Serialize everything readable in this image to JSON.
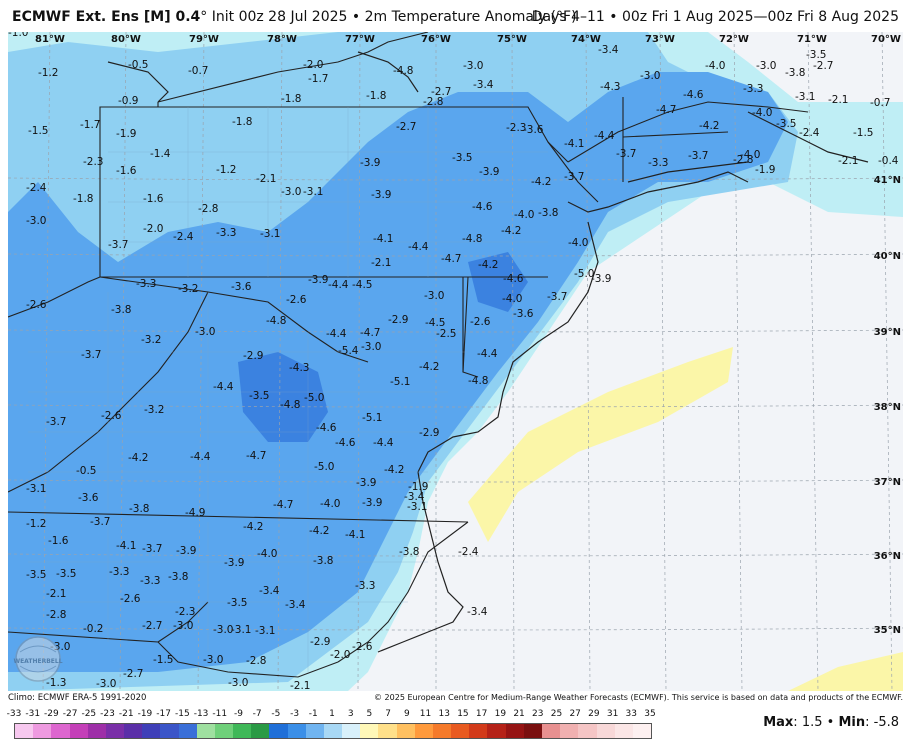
{
  "header": {
    "model": "ECMWF Ext. Ens [M] 0.4",
    "init_text": "° Init 00z 28 Jul 2025 • 2m Temperature Anomaly (°F)",
    "valid_text": "Days 4–11 • 00z Fri 1 Aug 2025—00z Fri 8 Aug 2025"
  },
  "axes": {
    "lon": [
      "81°W",
      "80°W",
      "79°W",
      "78°W",
      "77°W",
      "76°W",
      "75°W",
      "74°W",
      "73°W",
      "72°W",
      "71°W",
      "70°W"
    ],
    "lat": [
      "41°N",
      "40°N",
      "39°N",
      "38°N",
      "37°N",
      "36°N",
      "35°N"
    ]
  },
  "watermark": "WEATHERBELL",
  "anomaly_labels": [
    "-1.2",
    "-0.5",
    "-0.7",
    "-2.0",
    "-1.7",
    "-4.8",
    "-3.0",
    "-3.4",
    "-2.3",
    "-4.0",
    "-3.0",
    "-3.5",
    "-2.7",
    "-0.9",
    "-1.8",
    "-1.8",
    "-2.8",
    "-2.7",
    "-3.4",
    "-4.3",
    "-3.0",
    "-4.6",
    "-3.3",
    "-3.8",
    "-3.1",
    "-2.1",
    "-0.7",
    "-1.5",
    "-1.7",
    "-1.9",
    "-1.8",
    "-2.7",
    "-3.6",
    "-4.1",
    "-4.4",
    "-4.7",
    "-4.2",
    "-4.0",
    "-3.5",
    "-2.4",
    "-1.5",
    "-2.3",
    "-1.4",
    "-1.2",
    "-3.9",
    "-3.5",
    "-3.9",
    "-3.7",
    "-3.3",
    "-3.7",
    "-4.0",
    "-2.8",
    "-2.1",
    "-2.4",
    "-1.6",
    "-2.1",
    "-3.0",
    "-3.1",
    "-3.9",
    "-4.2",
    "-3.7",
    "-1.9",
    "-0.4",
    "-1.8",
    "-1.6",
    "-2.8",
    "-4.6",
    "-4.0",
    "-3.8",
    "-3.0",
    "-2.0",
    "-2.4",
    "-3.3",
    "-3.1",
    "-4.1",
    "-4.4",
    "-4.8",
    "-4.2",
    "-4.0",
    "-3.7",
    "-2.1",
    "-4.7",
    "-4.2",
    "-4.6",
    "-5.0",
    "-3.9",
    "-3.3",
    "-3.2",
    "-3.6",
    "-3.9",
    "-4.4",
    "-4.5",
    "-4.0",
    "-3.7",
    "-3.6",
    "-2.6",
    "-2.6",
    "-3.0",
    "-4.5",
    "-2.9",
    "-2.6",
    "-3.8",
    "-3.2",
    "-3.0",
    "-4.8",
    "-4.4",
    "-4.7",
    "-3.0",
    "-2.5",
    "-4.4",
    "-3.7",
    "-2.9",
    "-4.3",
    "-5.4",
    "-4.2",
    "-4.8",
    "-4.4",
    "-5.0",
    "-5.1",
    "-3.5",
    "-4.8",
    "-5.1",
    "-3.7",
    "-2.6",
    "-3.2",
    "-4.6",
    "-4.6",
    "-4.4",
    "-2.9",
    "-0.5",
    "-4.2",
    "-4.4",
    "-4.7",
    "-5.0",
    "-4.2",
    "-3.1",
    "-3.6",
    "-3.9",
    "-3.4",
    "-1.9",
    "-1.2",
    "-3.7",
    "-3.8",
    "-4.9",
    "-4.7",
    "-4.0",
    "-3.9",
    "-3.1",
    "-1.6",
    "-4.1",
    "-3.7",
    "-3.9",
    "-4.2",
    "-4.2",
    "-4.1",
    "-3.5",
    "-3.5",
    "-3.3",
    "-3.3",
    "-3.8",
    "-3.9",
    "-4.0",
    "-3.8",
    "-3.8",
    "-2.4",
    "-2.1",
    "-2.6",
    "-3.5",
    "-3.4",
    "-3.4",
    "-3.3",
    "-2.8",
    "-2.3",
    "-3.1",
    "-3.4",
    "-0.2",
    "-2.7",
    "-3.0",
    "-3.0",
    "-3.1",
    "-3.0",
    "-2.9",
    "-2.0",
    "-1.5",
    "-3.0",
    "-2.8",
    "-2.6",
    "-1.3",
    "-3.0",
    "-2.7",
    "-3.0",
    "-2.1",
    "-1.0"
  ],
  "footer": {
    "climo": "Climo: ECMWF ERA-5 1991-2020",
    "copyright": "© 2025 European Centre for Medium-Range Weather Forecasts (ECMWF). This service is based on data and products of the ECMWF.",
    "max_label": "Max",
    "max_value": "1.5",
    "min_label": "Min",
    "min_value": "-5.8",
    "separator": "•",
    "colorbar_ticks": [
      "-33",
      "-31",
      "-29",
      "-27",
      "-25",
      "-23",
      "-21",
      "-19",
      "-17",
      "-15",
      "-13",
      "-11",
      "-9",
      "-7",
      "-5",
      "-3",
      "-1",
      "1",
      "3",
      "5",
      "7",
      "9",
      "11",
      "13",
      "15",
      "17",
      "19",
      "21",
      "23",
      "25",
      "27",
      "29",
      "31",
      "33",
      "35"
    ],
    "colorbar_colors": [
      "#f7c8ef",
      "#ee9ae0",
      "#dd66cf",
      "#c43fb8",
      "#9e2fa8",
      "#7a2fa8",
      "#5b2fa8",
      "#3f3fb8",
      "#3b55c8",
      "#3a6fd8",
      "#9fe0a0",
      "#6fd07a",
      "#3fb858",
      "#2a9a45",
      "#1f6fd8",
      "#3b8fe8",
      "#70b4f0",
      "#a8d8f5",
      "#d8f0fa",
      "#fff8b8",
      "#ffe08a",
      "#ffc060",
      "#ff9a3c",
      "#f57a2a",
      "#e85a20",
      "#d23a1a",
      "#b52218",
      "#961414",
      "#7a1010",
      "#e89090",
      "#f0b0b0",
      "#f5c5c5",
      "#f8d8d8",
      "#fbe6e6",
      "#fdf0f0"
    ]
  }
}
